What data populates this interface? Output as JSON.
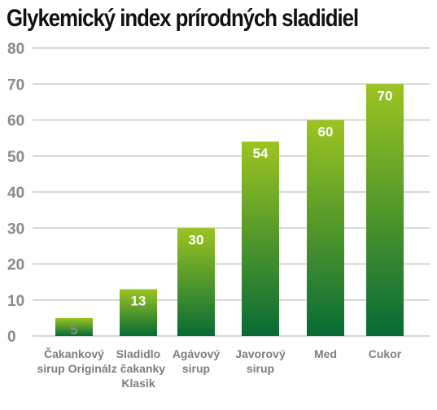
{
  "chart_data": {
    "type": "bar",
    "title": "Glykemický index prírodných sladidiel",
    "categories": [
      [
        "Čakankový",
        "sirup Originál"
      ],
      [
        "Sladidlo",
        "z čakanky",
        "Klasik"
      ],
      [
        "Agávový",
        "sirup"
      ],
      [
        "Javorový",
        "sirup"
      ],
      [
        "Med"
      ],
      [
        "Cukor"
      ]
    ],
    "values": [
      5,
      13,
      30,
      54,
      60,
      70
    ],
    "ylim": [
      0,
      80
    ],
    "yticks": [
      0,
      10,
      20,
      30,
      40,
      50,
      60,
      70,
      80
    ],
    "grid": true,
    "colors": {
      "bar_top": "#9cc421",
      "bar_bottom": "#076b35",
      "grid": "#c8c8c8",
      "tick_text": "#8a8a8a",
      "value_label_light": "#ffffff",
      "value_label_dark": "#8a8a8a"
    }
  }
}
